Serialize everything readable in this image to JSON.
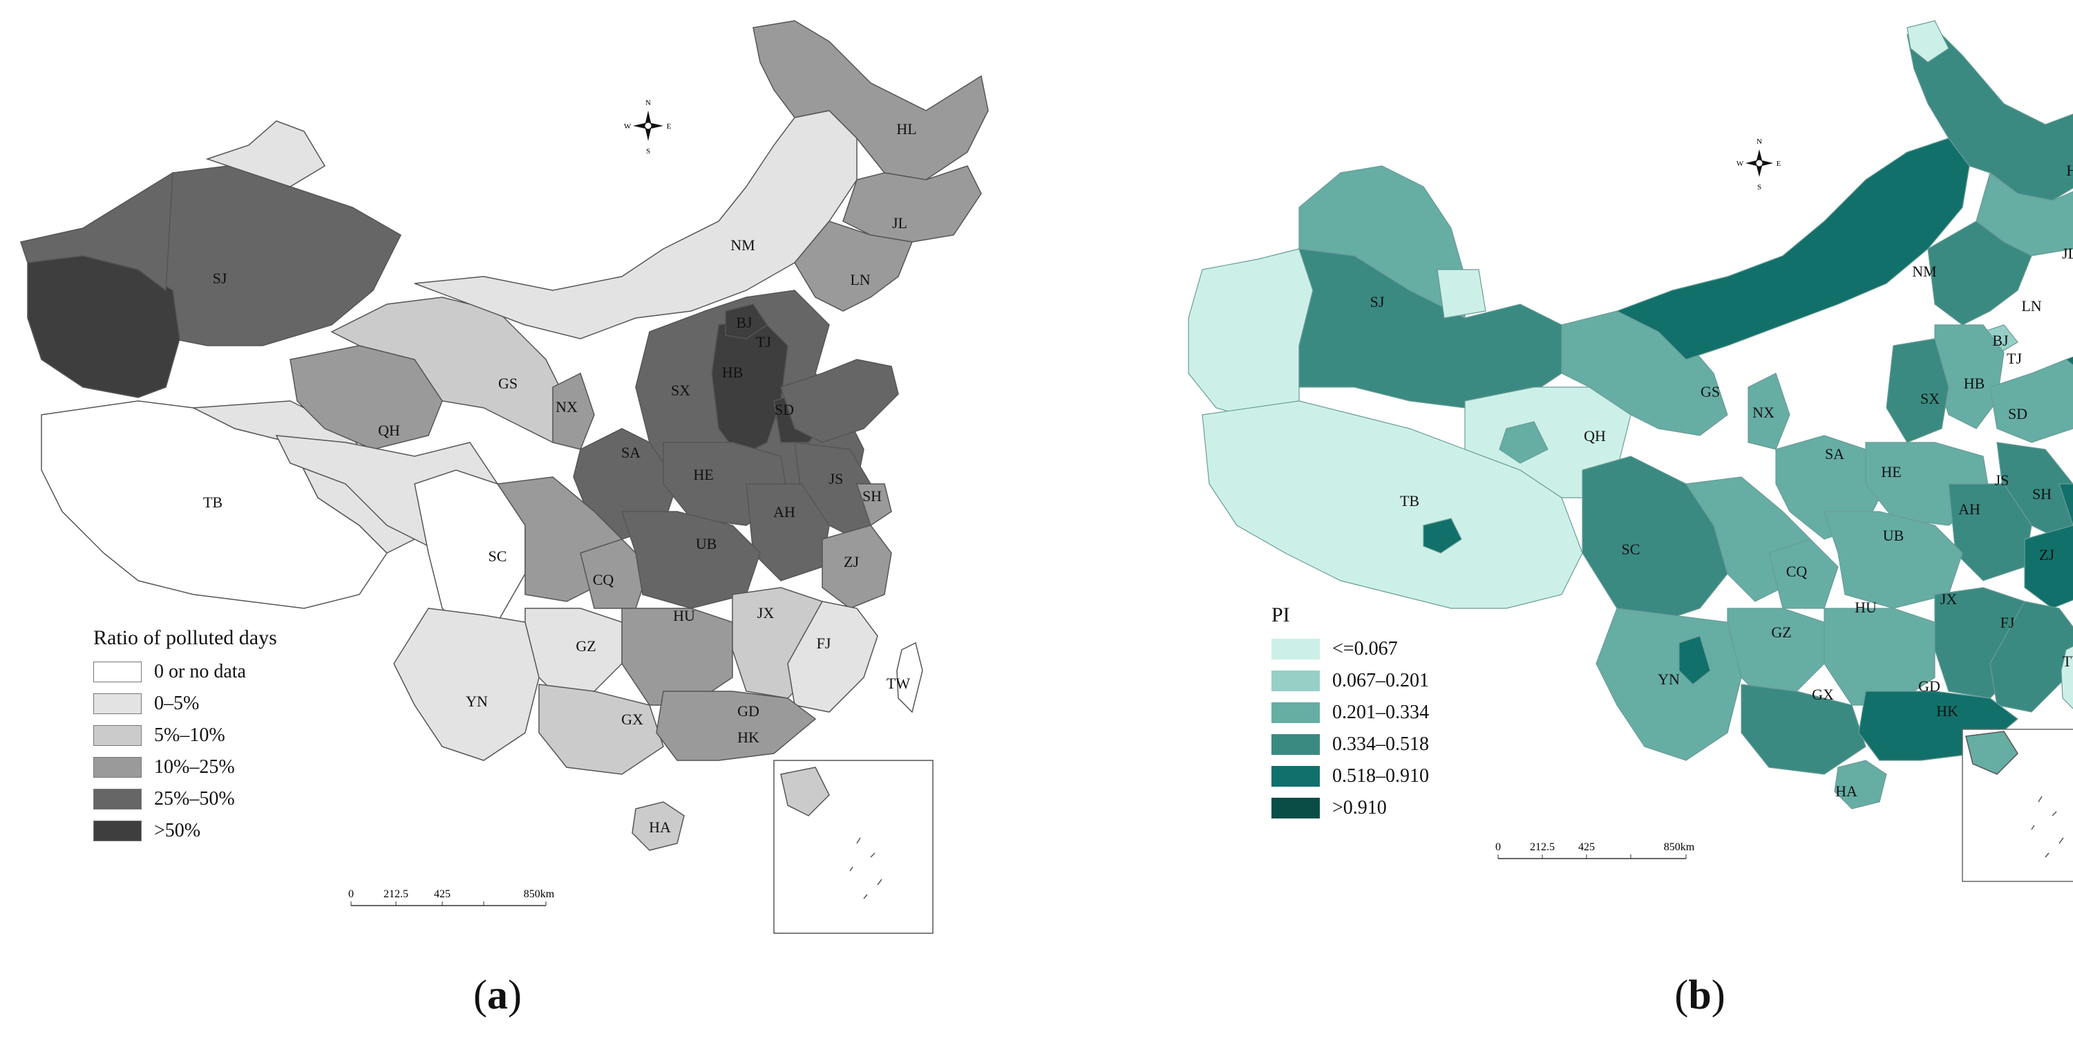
{
  "panel_a": {
    "caption_open": "(",
    "caption_letter": "a",
    "caption_close": ")",
    "legend_title": "Ratio of polluted days",
    "legend": [
      {
        "label": "0 or no data",
        "color": "#ffffff"
      },
      {
        "label": "0–5%",
        "color": "#e3e3e3"
      },
      {
        "label": "5%–10%",
        "color": "#cbcbcb"
      },
      {
        "label": "10%–25%",
        "color": "#9a9a9a"
      },
      {
        "label": "25%–50%",
        "color": "#666666"
      },
      {
        "label": ">50%",
        "color": "#3e3e3e"
      }
    ],
    "regions": [
      {
        "code": "SJ",
        "class": ">50%"
      },
      {
        "code": "HL",
        "class": "10%–25%"
      },
      {
        "code": "JL",
        "class": "10%–25%"
      },
      {
        "code": "LN",
        "class": "10%–25%"
      },
      {
        "code": "NM",
        "class": "0–5%"
      },
      {
        "code": "BJ",
        "class": ">50%"
      },
      {
        "code": "TJ",
        "class": ">50%"
      },
      {
        "code": "HB",
        "class": ">50%"
      },
      {
        "code": "SX",
        "class": "25%–50%"
      },
      {
        "code": "SD",
        "class": "25%–50%"
      },
      {
        "code": "GS",
        "class": "5%–10%"
      },
      {
        "code": "NX",
        "class": "10%–25%"
      },
      {
        "code": "QH",
        "class": "10%–25%"
      },
      {
        "code": "SA",
        "class": "25%–50%"
      },
      {
        "code": "HE",
        "class": "25%–50%"
      },
      {
        "code": "JS",
        "class": "25%–50%"
      },
      {
        "code": "SH",
        "class": "10%–25%"
      },
      {
        "code": "AH",
        "class": "25%–50%"
      },
      {
        "code": "TB",
        "class": "0–5%"
      },
      {
        "code": "SC",
        "class": "10%–25%"
      },
      {
        "code": "UB",
        "class": "25%–50%"
      },
      {
        "code": "CQ",
        "class": "10%–25%"
      },
      {
        "code": "ZJ",
        "class": "10%–25%"
      },
      {
        "code": "HU",
        "class": "10%–25%"
      },
      {
        "code": "JX",
        "class": "5%–10%"
      },
      {
        "code": "FJ",
        "class": "0–5%"
      },
      {
        "code": "GZ",
        "class": "0–5%"
      },
      {
        "code": "YN",
        "class": "0–5%"
      },
      {
        "code": "GX",
        "class": "5%–10%"
      },
      {
        "code": "GD",
        "class": "10%–25%"
      },
      {
        "code": "HK",
        "class": "10%–25%"
      },
      {
        "code": "TW",
        "class": "0 or no data"
      },
      {
        "code": "HA",
        "class": "5%–10%"
      }
    ],
    "scale": {
      "ticks": [
        "0",
        "212.5",
        "425",
        "850km"
      ]
    },
    "compass": {
      "n": "N",
      "s": "S",
      "e": "E",
      "w": "W"
    }
  },
  "panel_b": {
    "caption_open": "(",
    "caption_letter": "b",
    "caption_close": ")",
    "legend_title": "PI",
    "legend": [
      {
        "label": "<=0.067",
        "color": "#ccf0e8"
      },
      {
        "label": "0.067–0.201",
        "color": "#97cfc6"
      },
      {
        "label": "0.201–0.334",
        "color": "#66ada4"
      },
      {
        "label": "0.334–0.518",
        "color": "#3a8a82"
      },
      {
        "label": "0.518–0.910",
        "color": "#12706a"
      },
      {
        "label": ">0.910",
        "color": "#0a4d46"
      }
    ],
    "regions": [
      {
        "code": "SJ",
        "class": "0.334–0.518"
      },
      {
        "code": "HL",
        "class": "0.334–0.518"
      },
      {
        "code": "JL",
        "class": "0.334–0.518"
      },
      {
        "code": "LN",
        "class": "0.334–0.518"
      },
      {
        "code": "NM",
        "class": "0.518–0.910"
      },
      {
        "code": "BJ",
        "class": "0.201–0.334"
      },
      {
        "code": "TJ",
        "class": "0.201–0.334"
      },
      {
        "code": "HB",
        "class": "0.201–0.334"
      },
      {
        "code": "SX",
        "class": "0.334–0.518"
      },
      {
        "code": "SD",
        "class": "0.201–0.334"
      },
      {
        "code": "GS",
        "class": "0.334–0.518"
      },
      {
        "code": "NX",
        "class": "0.201–0.334"
      },
      {
        "code": "QH",
        "class": "<=0.067"
      },
      {
        "code": "SA",
        "class": "0.201–0.334"
      },
      {
        "code": "HE",
        "class": "0.201–0.334"
      },
      {
        "code": "JS",
        "class": "0.334–0.518"
      },
      {
        "code": "SH",
        "class": "0.518–0.910"
      },
      {
        "code": "AH",
        "class": "0.334–0.518"
      },
      {
        "code": "TB",
        "class": "<=0.067"
      },
      {
        "code": "SC",
        "class": "0.334–0.518"
      },
      {
        "code": "UB",
        "class": "0.201–0.334"
      },
      {
        "code": "CQ",
        "class": "0.201–0.334"
      },
      {
        "code": "ZJ",
        "class": "0.518–0.910"
      },
      {
        "code": "HU",
        "class": "0.201–0.334"
      },
      {
        "code": "JX",
        "class": "0.334–0.518"
      },
      {
        "code": "FJ",
        "class": "0.334–0.518"
      },
      {
        "code": "GZ",
        "class": "0.201–0.334"
      },
      {
        "code": "YN",
        "class": "0.201–0.334"
      },
      {
        "code": "GX",
        "class": "0.334–0.518"
      },
      {
        "code": "GD",
        "class": "0.518–0.910"
      },
      {
        "code": "HK",
        "class": "0.518–0.910"
      },
      {
        "code": "TW",
        "class": "<=0.067"
      },
      {
        "code": "HA",
        "class": "0.201–0.334"
      }
    ],
    "scale": {
      "ticks": [
        "0",
        "212.5",
        "425",
        "850km"
      ]
    },
    "compass": {
      "n": "N",
      "s": "S",
      "e": "E",
      "w": "W"
    }
  }
}
